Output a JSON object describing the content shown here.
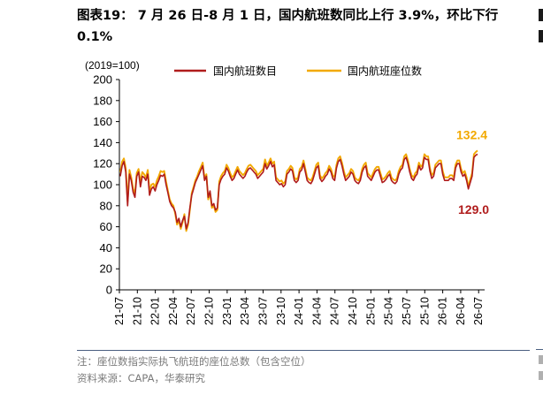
{
  "title": "图表19： 7 月 26 日-8 月 1 日，国内航班数同比上行 3.9%，环比下行 0.1%",
  "chart_data": {
    "type": "line",
    "unit_label": "(2019=100)",
    "ylim": [
      0,
      200
    ],
    "yticks": [
      0,
      20,
      40,
      60,
      80,
      100,
      120,
      140,
      160,
      180,
      200
    ],
    "xticks": [
      "21-07",
      "21-10",
      "22-01",
      "22-04",
      "22-07",
      "22-10",
      "23-01",
      "23-04",
      "23-07",
      "23-10",
      "24-01",
      "24-04",
      "24-07",
      "24-10",
      "25-01",
      "25-04",
      "25-07",
      "25-10",
      "26-01",
      "26-04",
      "26-07"
    ],
    "x_start": "2021-07",
    "x_end": "2026-08",
    "legend_position": "top",
    "grid": false,
    "series": [
      {
        "name": "国内航班数目",
        "color": "#b01c1c",
        "end_label": "129.0",
        "values": [
          108,
          118,
          122,
          112,
          80,
          110,
          104,
          93,
          88,
          108,
          112,
          98,
          108,
          107,
          104,
          110,
          90,
          96,
          98,
          94,
          100,
          104,
          109,
          108,
          110,
          100,
          92,
          84,
          80,
          78,
          74,
          64,
          68,
          60,
          66,
          70,
          58,
          64,
          78,
          90,
          96,
          102,
          106,
          110,
          114,
          118,
          104,
          108,
          88,
          94,
          80,
          82,
          76,
          78,
          100,
          105,
          108,
          110,
          116,
          113,
          108,
          104,
          106,
          110,
          114,
          110,
          108,
          106,
          108,
          112,
          115,
          116,
          114,
          112,
          110,
          106,
          108,
          110,
          112,
          120,
          115,
          118,
          122,
          117,
          119,
          104,
          102,
          100,
          101,
          98,
          100,
          110,
          112,
          115,
          113,
          104,
          102,
          104,
          112,
          114,
          120,
          112,
          104,
          102,
          101,
          104,
          110,
          116,
          118,
          106,
          103,
          105,
          108,
          110,
          115,
          112,
          106,
          104,
          116,
          122,
          124,
          118,
          110,
          104,
          106,
          108,
          112,
          110,
          104,
          102,
          101,
          104,
          112,
          116,
          118,
          108,
          106,
          104,
          108,
          112,
          114,
          114,
          108,
          102,
          103,
          105,
          108,
          110,
          104,
          102,
          101,
          103,
          110,
          114,
          116,
          124,
          126,
          120,
          112,
          106,
          104,
          108,
          110,
          118,
          114,
          116,
          126,
          124,
          124,
          113,
          106,
          108,
          116,
          118,
          120,
          120,
          110,
          104,
          104,
          104,
          106,
          106,
          104,
          116,
          120,
          120,
          112,
          108,
          110,
          104,
          96,
          102,
          108,
          126,
          128,
          129
        ]
      },
      {
        "name": "国内航班座位数",
        "color": "#f2a900",
        "end_label": "132.4",
        "values": [
          112,
          122,
          125,
          116,
          84,
          114,
          107,
          96,
          92,
          111,
          115,
          102,
          112,
          110,
          107,
          114,
          94,
          100,
          101,
          98,
          104,
          108,
          113,
          112,
          113,
          103,
          94,
          86,
          82,
          80,
          72,
          62,
          66,
          58,
          64,
          72,
          56,
          62,
          76,
          92,
          98,
          104,
          108,
          113,
          117,
          121,
          106,
          110,
          86,
          92,
          78,
          80,
          74,
          76,
          103,
          108,
          111,
          113,
          119,
          116,
          111,
          107,
          109,
          113,
          117,
          113,
          111,
          109,
          111,
          115,
          118,
          119,
          117,
          115,
          113,
          109,
          111,
          113,
          115,
          124,
          118,
          121,
          125,
          120,
          122,
          107,
          105,
          103,
          104,
          101,
          103,
          113,
          115,
          118,
          116,
          107,
          105,
          107,
          115,
          117,
          123,
          115,
          107,
          105,
          104,
          107,
          113,
          119,
          121,
          109,
          106,
          108,
          111,
          113,
          118,
          115,
          109,
          107,
          119,
          125,
          127,
          121,
          113,
          107,
          109,
          111,
          115,
          113,
          107,
          105,
          104,
          107,
          115,
          119,
          121,
          111,
          109,
          107,
          111,
          115,
          117,
          117,
          111,
          105,
          106,
          108,
          111,
          113,
          107,
          105,
          104,
          106,
          113,
          117,
          119,
          127,
          129,
          123,
          115,
          109,
          107,
          111,
          113,
          121,
          117,
          119,
          129,
          127,
          127,
          116,
          109,
          111,
          119,
          121,
          123,
          123,
          113,
          107,
          107,
          107,
          109,
          109,
          107,
          119,
          123,
          123,
          115,
          111,
          113,
          107,
          98,
          105,
          111,
          129,
          131,
          132.4
        ]
      }
    ]
  },
  "notes": {
    "line1": "注：座位数指实际执飞航班的座位总数（包含空位）",
    "line2": "资料来源：CAPA，华泰研究"
  }
}
